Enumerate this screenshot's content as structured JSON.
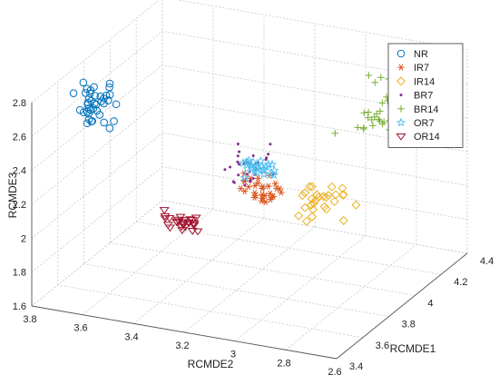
{
  "chart_data": {
    "type": "scatter",
    "title": "",
    "xlabel": "RCMDE1",
    "ylabel": "RCMDE2",
    "zlabel": "RCMDE3",
    "xlim": [
      3.4,
      4.4
    ],
    "ylim": [
      2.6,
      3.8
    ],
    "zlim": [
      1.6,
      2.8
    ],
    "x_ticks": [
      "3.4",
      "3.6",
      "3.8",
      "4",
      "4.2",
      "4.4"
    ],
    "y_ticks": [
      "3.8",
      "3.6",
      "3.4",
      "3.2",
      "3",
      "2.8",
      "2.6"
    ],
    "z_ticks": [
      "1.6",
      "1.8",
      "2",
      "2.2",
      "2.4",
      "2.6",
      "2.8"
    ],
    "grid": true,
    "legend_position": "top-right",
    "series": [
      {
        "name": "NR",
        "marker": "circle",
        "color": "#0072BD",
        "center": [
          3.7,
          3.71,
          2.62
        ],
        "spread": [
          0.03,
          0.04,
          0.06
        ],
        "count": 40
      },
      {
        "name": "IR7",
        "marker": "asterisk",
        "color": "#D95319",
        "center": [
          3.68,
          3.04,
          2.32
        ],
        "spread": [
          0.03,
          0.04,
          0.04
        ],
        "count": 30
      },
      {
        "name": "IR14",
        "marker": "diamond",
        "color": "#EDB120",
        "center": [
          3.7,
          2.8,
          2.3
        ],
        "spread": [
          0.04,
          0.06,
          0.05
        ],
        "count": 28
      },
      {
        "name": "BR7",
        "marker": "dot",
        "color": "#7E2F8E",
        "center": [
          3.62,
          3.05,
          2.48
        ],
        "spread": [
          0.03,
          0.04,
          0.06
        ],
        "count": 30
      },
      {
        "name": "BR14",
        "marker": "plus",
        "color": "#77AC30",
        "center": [
          4.15,
          2.8,
          2.55
        ],
        "spread": [
          0.05,
          0.06,
          0.09
        ],
        "count": 40
      },
      {
        "name": "OR7",
        "marker": "star",
        "color": "#4DBEEE",
        "center": [
          3.55,
          2.98,
          2.53
        ],
        "spread": [
          0.02,
          0.03,
          0.02
        ],
        "count": 25
      },
      {
        "name": "OR14",
        "marker": "triangle-down",
        "color": "#A2142F",
        "center": [
          3.52,
          3.25,
          2.15
        ],
        "spread": [
          0.02,
          0.04,
          0.03
        ],
        "count": 28
      }
    ]
  }
}
